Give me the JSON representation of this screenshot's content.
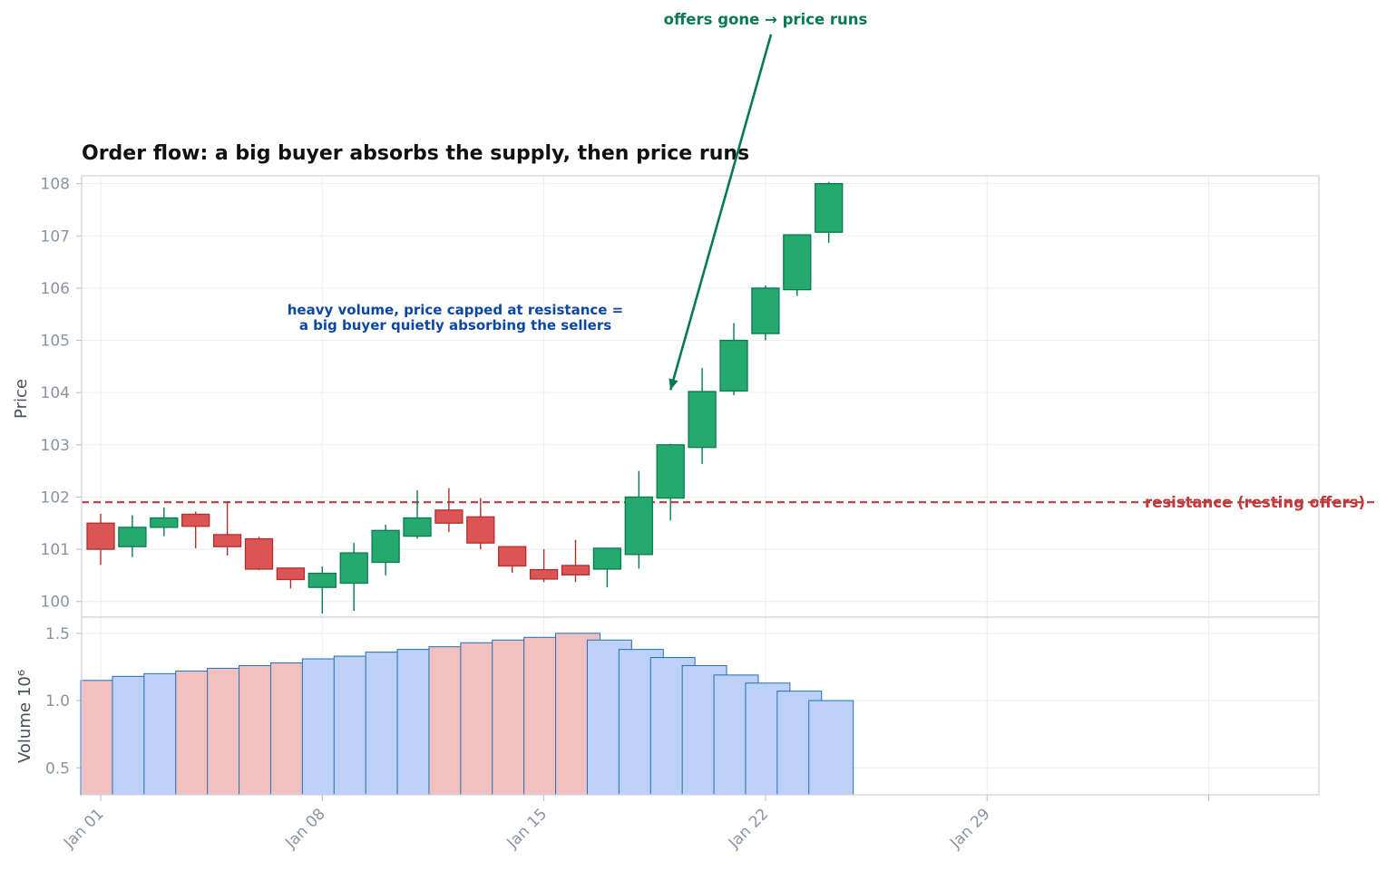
{
  "chart_data": {
    "type": "candlestick",
    "title": "Order flow: a big buyer absorbs the supply, then price runs",
    "x_tick_labels": [
      "Jan 01",
      "Jan 08",
      "Jan 15",
      "Jan 22",
      "Jan 29"
    ],
    "x_tick_dates": [
      "2024-01-01",
      "2024-01-08",
      "2024-01-15",
      "2024-01-22",
      "2024-01-29",
      "2024-02-05"
    ],
    "price_panel": {
      "ylabel": "Price",
      "ylim": [
        99.7,
        108.15
      ],
      "yticks": [
        100,
        101,
        102,
        103,
        104,
        105,
        106,
        107,
        108
      ],
      "candles": [
        {
          "date": "2024-01-01",
          "open": 101.5,
          "high": 101.68,
          "low": 100.7,
          "close": 101.0
        },
        {
          "date": "2024-01-02",
          "open": 101.05,
          "high": 101.65,
          "low": 100.85,
          "close": 101.42
        },
        {
          "date": "2024-01-03",
          "open": 101.42,
          "high": 101.8,
          "low": 101.25,
          "close": 101.6
        },
        {
          "date": "2024-01-04",
          "open": 101.67,
          "high": 101.72,
          "low": 101.02,
          "close": 101.44
        },
        {
          "date": "2024-01-05",
          "open": 101.28,
          "high": 101.92,
          "low": 100.88,
          "close": 101.05
        },
        {
          "date": "2024-01-06",
          "open": 101.2,
          "high": 101.24,
          "low": 100.6,
          "close": 100.62
        },
        {
          "date": "2024-01-07",
          "open": 100.64,
          "high": 100.64,
          "low": 100.25,
          "close": 100.42
        },
        {
          "date": "2024-01-08",
          "open": 100.27,
          "high": 100.67,
          "low": 99.77,
          "close": 100.54
        },
        {
          "date": "2024-01-09",
          "open": 100.35,
          "high": 101.12,
          "low": 99.82,
          "close": 100.93
        },
        {
          "date": "2024-01-10",
          "open": 100.75,
          "high": 101.47,
          "low": 100.5,
          "close": 101.36
        },
        {
          "date": "2024-01-11",
          "open": 101.25,
          "high": 102.13,
          "low": 101.2,
          "close": 101.6
        },
        {
          "date": "2024-01-12",
          "open": 101.75,
          "high": 102.17,
          "low": 101.33,
          "close": 101.5
        },
        {
          "date": "2024-01-13",
          "open": 101.62,
          "high": 101.98,
          "low": 101.0,
          "close": 101.12
        },
        {
          "date": "2024-01-14",
          "open": 101.05,
          "high": 101.05,
          "low": 100.55,
          "close": 100.68
        },
        {
          "date": "2024-01-15",
          "open": 100.61,
          "high": 101.0,
          "low": 100.37,
          "close": 100.43
        },
        {
          "date": "2024-01-16",
          "open": 100.69,
          "high": 101.18,
          "low": 100.37,
          "close": 100.51
        },
        {
          "date": "2024-01-17",
          "open": 100.62,
          "high": 101.02,
          "low": 100.27,
          "close": 101.02
        },
        {
          "date": "2024-01-18",
          "open": 100.9,
          "high": 102.5,
          "low": 100.63,
          "close": 102.0
        },
        {
          "date": "2024-01-19",
          "open": 101.98,
          "high": 103.02,
          "low": 101.55,
          "close": 103.0
        },
        {
          "date": "2024-01-20",
          "open": 102.95,
          "high": 104.47,
          "low": 102.63,
          "close": 104.02
        },
        {
          "date": "2024-01-21",
          "open": 104.03,
          "high": 105.33,
          "low": 103.95,
          "close": 105.0
        },
        {
          "date": "2024-01-22",
          "open": 105.13,
          "high": 106.05,
          "low": 105.0,
          "close": 106.0
        },
        {
          "date": "2024-01-23",
          "open": 105.97,
          "high": 107.02,
          "low": 105.85,
          "close": 107.02
        },
        {
          "date": "2024-01-24",
          "open": 107.07,
          "high": 108.03,
          "low": 106.87,
          "close": 108.0
        }
      ],
      "resistance": {
        "value": 101.9,
        "label": "resistance (resting offers)"
      }
    },
    "volume_panel": {
      "ylabel": "Volume",
      "unit_label": "10⁶",
      "ylim": [
        0.3,
        1.62
      ],
      "yticks": [
        0.5,
        1.0,
        1.5
      ],
      "values": [
        1.15,
        1.18,
        1.2,
        1.22,
        1.24,
        1.26,
        1.28,
        1.31,
        1.33,
        1.36,
        1.38,
        1.4,
        1.43,
        1.45,
        1.47,
        1.5,
        1.45,
        1.38,
        1.32,
        1.26,
        1.19,
        1.13,
        1.07,
        1.0
      ]
    },
    "annotations": [
      {
        "text_lines": [
          "heavy volume, price capped at resistance =",
          "a big buyer quietly absorbing the sellers"
        ],
        "color": "#0d47a1"
      },
      {
        "text": "offers gone → price runs",
        "color": "#087a52",
        "arrow_to": {
          "date": "2024-01-19",
          "price": 104.05
        }
      }
    ],
    "grid": true,
    "colors": {
      "up_fill": "#26a96f",
      "up_edge": "#087a52",
      "down_fill": "#dc5555",
      "down_edge": "#b22e2e",
      "vol_up_fill": "#bdd1f7",
      "vol_down_fill": "#f2c0c0",
      "vol_edge": "#1f6fb5",
      "resistance": "#c0393b",
      "grid": "#eceef5",
      "frame": "#cfd4e2"
    }
  }
}
